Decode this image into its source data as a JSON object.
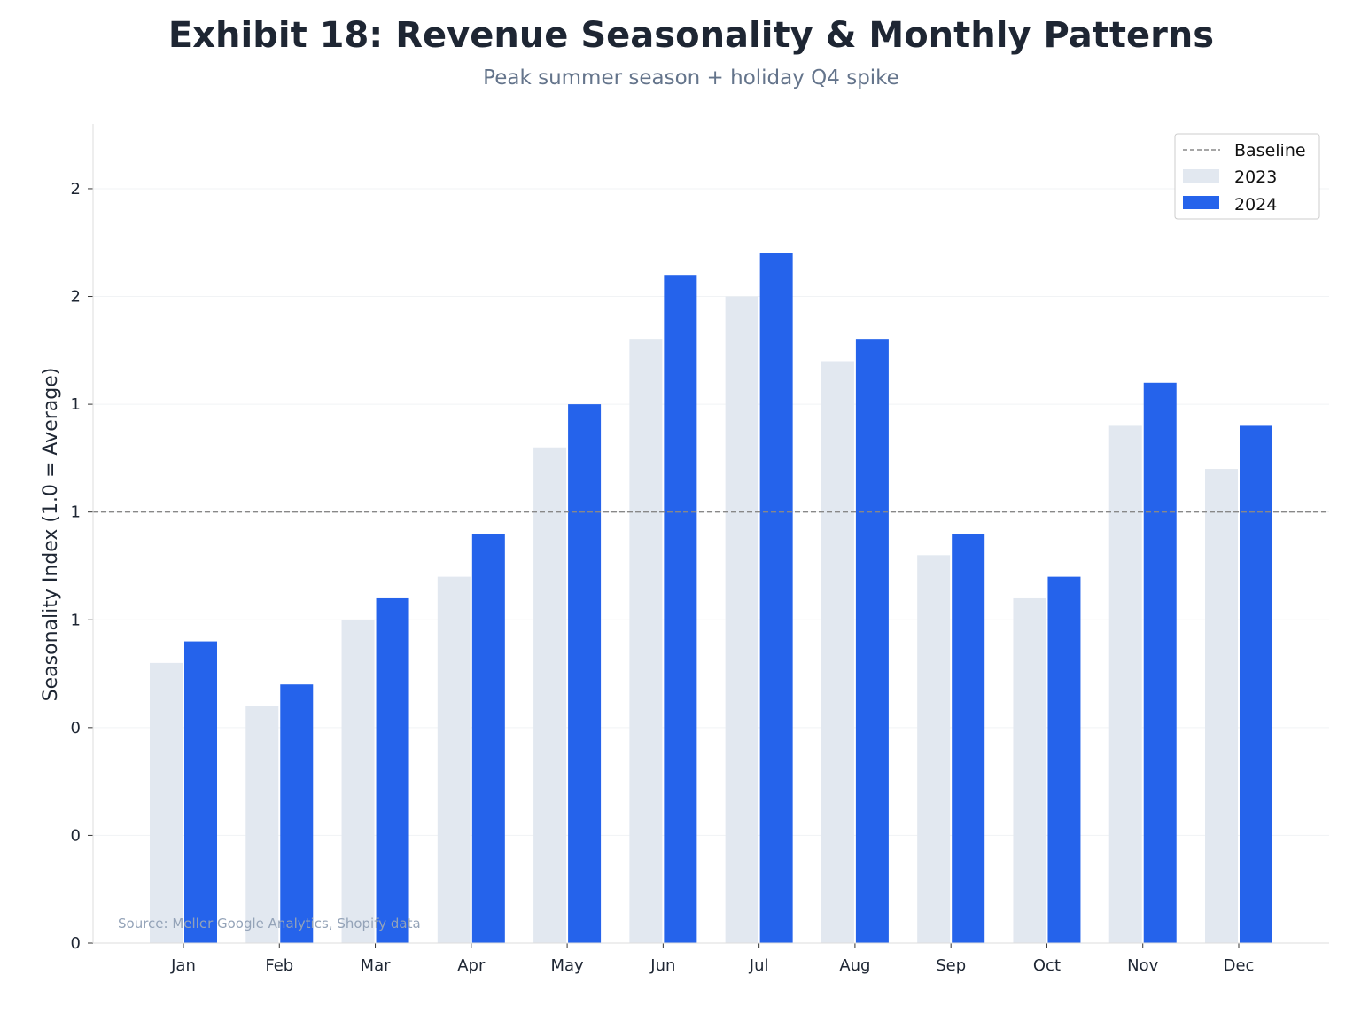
{
  "chart_data": {
    "type": "bar",
    "title": "Exhibit 18: Revenue Seasonality & Monthly Patterns",
    "subtitle": "Peak summer season + holiday Q4 spike",
    "xlabel": "",
    "ylabel": "Seasonality Index (1.0 = Average)",
    "categories": [
      "Jan",
      "Feb",
      "Mar",
      "Apr",
      "May",
      "Jun",
      "Jul",
      "Aug",
      "Sep",
      "Oct",
      "Nov",
      "Dec"
    ],
    "series": [
      {
        "name": "2023",
        "color": "#e2e8f0",
        "values": [
          0.65,
          0.55,
          0.75,
          0.85,
          1.15,
          1.4,
          1.5,
          1.35,
          0.9,
          0.8,
          1.2,
          1.1
        ]
      },
      {
        "name": "2024",
        "color": "#2563eb",
        "values": [
          0.7,
          0.6,
          0.8,
          0.95,
          1.25,
          1.55,
          1.6,
          1.4,
          0.95,
          0.85,
          1.3,
          1.2
        ]
      }
    ],
    "baseline": {
      "name": "Baseline",
      "value": 1.0,
      "color": "#888888",
      "style": "dashed"
    },
    "ylim": [
      0,
      1.9
    ],
    "yticks": [
      0,
      0.25,
      0.5,
      0.75,
      1.0,
      1.25,
      1.5,
      1.75
    ],
    "ytick_labels": [
      "0",
      "0",
      "0",
      "1",
      "1",
      "1",
      "2",
      "2"
    ],
    "grid": true,
    "legend_position": "top-right",
    "source_note": "Source: Meller Google Analytics, Shopify data"
  }
}
